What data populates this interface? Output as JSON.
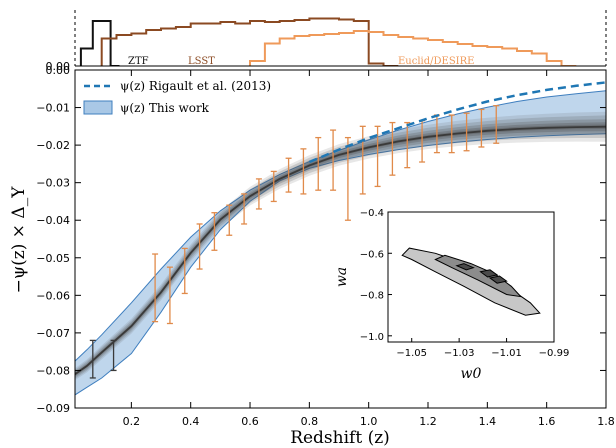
{
  "chart_data": [
    {
      "type": "line",
      "panel": "main",
      "xlabel": "Redshift (z)",
      "ylabel": "−ψ(z) × Δ_Y",
      "xlim": [
        0.01,
        1.8
      ],
      "ylim": [
        -0.09,
        0.0
      ],
      "x_ticks": [
        0.2,
        0.4,
        0.6,
        0.8,
        1.0,
        1.2,
        1.4,
        1.6,
        1.8
      ],
      "x_tick_labels": [
        "0.2",
        "0.4",
        "0.6",
        "0.8",
        "1.0",
        "1.2",
        "1.4",
        "1.6",
        "1.8"
      ],
      "y_ticks": [
        0.0,
        -0.01,
        -0.02,
        -0.03,
        -0.04,
        -0.05,
        -0.06,
        -0.07,
        -0.08,
        -0.09
      ],
      "y_tick_labels": [
        "0.00",
        "−0.01",
        "−0.02",
        "−0.03",
        "−0.04",
        "−0.05",
        "−0.06",
        "−0.07",
        "−0.08",
        "−0.09"
      ],
      "legend_position": "top-left",
      "series": [
        {
          "name": "ψ(z) Rigault et al. (2013)",
          "style": "dashed",
          "color": "#1f77b4",
          "x": [
            0.8,
            0.9,
            1.0,
            1.1,
            1.2,
            1.3,
            1.4,
            1.5,
            1.6,
            1.7,
            1.8
          ],
          "y": [
            -0.0245,
            -0.0212,
            -0.0181,
            -0.0155,
            -0.0129,
            -0.0105,
            -0.0084,
            -0.0067,
            -0.0053,
            -0.0042,
            -0.0033
          ]
        },
        {
          "name": "ψ(z) This work",
          "style": "band",
          "color": "#3f7fbf",
          "fill": "#a9c8e6",
          "x": [
            0.01,
            0.05,
            0.1,
            0.2,
            0.3,
            0.4,
            0.5,
            0.6,
            0.7,
            0.8,
            0.9,
            1.0,
            1.1,
            1.2,
            1.3,
            1.4,
            1.5,
            1.6,
            1.7,
            1.8
          ],
          "y_upper": [
            -0.0775,
            -0.0745,
            -0.0705,
            -0.062,
            -0.053,
            -0.0445,
            -0.0375,
            -0.032,
            -0.0278,
            -0.0244,
            -0.0214,
            -0.0186,
            -0.016,
            -0.0137,
            -0.0117,
            -0.0099,
            -0.0084,
            -0.0072,
            -0.0063,
            -0.0055
          ],
          "y_lower": [
            -0.0865,
            -0.0845,
            -0.082,
            -0.0755,
            -0.0645,
            -0.0525,
            -0.0425,
            -0.035,
            -0.0295,
            -0.0262,
            -0.0241,
            -0.0225,
            -0.0212,
            -0.0201,
            -0.0192,
            -0.0185,
            -0.0179,
            -0.0175,
            -0.0172,
            -0.017
          ]
        },
        {
          "name": "",
          "style": "median",
          "color": "#3a3a3a",
          "x": [
            0.01,
            0.05,
            0.1,
            0.2,
            0.3,
            0.4,
            0.5,
            0.6,
            0.7,
            0.8,
            0.9,
            1.0,
            1.1,
            1.2,
            1.3,
            1.4,
            1.5,
            1.6,
            1.7,
            1.8
          ],
          "y": [
            -0.081,
            -0.0788,
            -0.0752,
            -0.0682,
            -0.0592,
            -0.0487,
            -0.0398,
            -0.0336,
            -0.029,
            -0.0254,
            -0.0226,
            -0.0206,
            -0.019,
            -0.0178,
            -0.0169,
            -0.0162,
            -0.0157,
            -0.0154,
            -0.0152,
            -0.0151
          ]
        }
      ],
      "error_bars": [
        {
          "color": "#3a3a3a",
          "x": 0.07,
          "y": -0.077,
          "err": 0.005
        },
        {
          "color": "#3a3a3a",
          "x": 0.14,
          "y": -0.076,
          "err": 0.004
        },
        {
          "color": "#e08a4a",
          "x": 0.28,
          "y": -0.058,
          "err": 0.009
        },
        {
          "color": "#e08a4a",
          "x": 0.33,
          "y": -0.06,
          "err": 0.0075
        },
        {
          "color": "#e08a4a",
          "x": 0.38,
          "y": -0.0535,
          "err": 0.006
        },
        {
          "color": "#e08a4a",
          "x": 0.43,
          "y": -0.047,
          "err": 0.006
        },
        {
          "color": "#e08a4a",
          "x": 0.48,
          "y": -0.043,
          "err": 0.005
        },
        {
          "color": "#e08a4a",
          "x": 0.53,
          "y": -0.04,
          "err": 0.004
        },
        {
          "color": "#e08a4a",
          "x": 0.58,
          "y": -0.037,
          "err": 0.004
        },
        {
          "color": "#e08a4a",
          "x": 0.63,
          "y": -0.033,
          "err": 0.004
        },
        {
          "color": "#e08a4a",
          "x": 0.68,
          "y": -0.031,
          "err": 0.004
        },
        {
          "color": "#e08a4a",
          "x": 0.73,
          "y": -0.028,
          "err": 0.0045
        },
        {
          "color": "#e08a4a",
          "x": 0.78,
          "y": -0.027,
          "err": 0.006
        },
        {
          "color": "#e08a4a",
          "x": 0.83,
          "y": -0.025,
          "err": 0.007
        },
        {
          "color": "#e08a4a",
          "x": 0.88,
          "y": -0.024,
          "err": 0.008
        },
        {
          "color": "#e08a4a",
          "x": 0.93,
          "y": -0.029,
          "err": 0.011
        },
        {
          "color": "#e08a4a",
          "x": 0.98,
          "y": -0.024,
          "err": 0.009
        },
        {
          "color": "#e08a4a",
          "x": 1.03,
          "y": -0.023,
          "err": 0.008
        },
        {
          "color": "#e08a4a",
          "x": 1.08,
          "y": -0.021,
          "err": 0.007
        },
        {
          "color": "#e08a4a",
          "x": 1.13,
          "y": -0.02,
          "err": 0.006
        },
        {
          "color": "#e08a4a",
          "x": 1.18,
          "y": -0.019,
          "err": 0.0055
        },
        {
          "color": "#e08a4a",
          "x": 1.23,
          "y": -0.017,
          "err": 0.005
        },
        {
          "color": "#e08a4a",
          "x": 1.28,
          "y": -0.017,
          "err": 0.005
        },
        {
          "color": "#e08a4a",
          "x": 1.33,
          "y": -0.0165,
          "err": 0.005
        },
        {
          "color": "#e08a4a",
          "x": 1.38,
          "y": -0.0155,
          "err": 0.005
        },
        {
          "color": "#e08a4a",
          "x": 1.43,
          "y": -0.0145,
          "err": 0.005
        }
      ]
    },
    {
      "type": "bar",
      "panel": "top histogram",
      "ytick_labels": [
        "0.00"
      ],
      "ylim": [
        0,
        1.0
      ],
      "series": [
        {
          "name": "ZTF",
          "color": "#111111",
          "bins": [
            0.03,
            0.07,
            0.1,
            0.13,
            0.16
          ],
          "heights": [
            0.35,
            0.9,
            0.9,
            0.0
          ]
        },
        {
          "name": "LSST",
          "color": "#8b4a22",
          "bins": [
            0.1,
            0.15,
            0.2,
            0.25,
            0.3,
            0.35,
            0.4,
            0.45,
            0.5,
            0.55,
            0.6,
            0.65,
            0.7,
            0.75,
            0.8,
            0.85,
            0.9,
            0.95,
            1.0,
            1.05,
            1.1
          ],
          "heights": [
            0.55,
            0.62,
            0.65,
            0.72,
            0.75,
            0.78,
            0.85,
            0.85,
            0.88,
            0.85,
            0.9,
            0.88,
            0.9,
            0.92,
            0.95,
            0.95,
            0.93,
            0.9,
            0.05,
            0.0
          ]
        },
        {
          "name": "Euclid/DESIRE",
          "color": "#ef9a5a",
          "bins": [
            0.6,
            0.65,
            0.7,
            0.75,
            0.8,
            0.85,
            0.9,
            0.95,
            1.0,
            1.05,
            1.1,
            1.15,
            1.2,
            1.25,
            1.3,
            1.35,
            1.4,
            1.45,
            1.5,
            1.55,
            1.6,
            1.65,
            1.7
          ],
          "heights": [
            0.1,
            0.45,
            0.55,
            0.6,
            0.62,
            0.64,
            0.66,
            0.7,
            0.68,
            0.62,
            0.58,
            0.55,
            0.52,
            0.48,
            0.44,
            0.4,
            0.38,
            0.35,
            0.3,
            0.25,
            0.1,
            0.0
          ]
        }
      ]
    },
    {
      "type": "scatter",
      "panel": "inset contour",
      "xlabel": "w0",
      "ylabel": "wa",
      "xlim": [
        -1.06,
        -0.99
      ],
      "ylim": [
        -1.03,
        -0.4
      ],
      "x_ticks": [
        -1.05,
        -1.03,
        -1.01,
        -0.99
      ],
      "x_tick_labels": [
        "−1.05",
        "−1.03",
        "−1.01",
        "−0.99"
      ],
      "y_ticks": [
        -0.4,
        -0.6,
        -0.8,
        -1.0
      ],
      "y_tick_labels": [
        "−0.4",
        "−0.6",
        "−0.8",
        "−1.0"
      ],
      "contours": [
        {
          "level": "outer",
          "fill": "#c7c7c7",
          "w0": [
            -1.054,
            -1.051,
            -1.04,
            -1.03,
            -1.02,
            -1.01,
            -1.0,
            -0.996,
            -1.002,
            -1.015,
            -1.028,
            -1.04,
            -1.05
          ],
          "wa": [
            -0.61,
            -0.575,
            -0.6,
            -0.64,
            -0.69,
            -0.76,
            -0.84,
            -0.89,
            -0.9,
            -0.84,
            -0.76,
            -0.69,
            -0.63
          ]
        },
        {
          "level": "middle",
          "fill": "#8c8c8c",
          "w0": [
            -1.04,
            -1.036,
            -1.025,
            -1.015,
            -1.008,
            -1.004,
            -1.01,
            -1.022,
            -1.033
          ],
          "wa": [
            -0.63,
            -0.61,
            -0.65,
            -0.7,
            -0.76,
            -0.81,
            -0.8,
            -0.73,
            -0.67
          ]
        },
        {
          "level": "inner",
          "fill": "#4a4a4a",
          "w0": [
            -1.031,
            -1.028,
            -1.024,
            -1.027
          ],
          "wa": [
            -0.66,
            -0.65,
            -0.67,
            -0.68
          ]
        },
        {
          "level": "inner",
          "fill": "#4a4a4a",
          "w0": [
            -1.021,
            -1.017,
            -1.014,
            -1.018
          ],
          "wa": [
            -0.69,
            -0.68,
            -0.705,
            -0.715
          ]
        },
        {
          "level": "inner",
          "fill": "#4a4a4a",
          "w0": [
            -1.017,
            -1.013,
            -1.01,
            -1.014
          ],
          "wa": [
            -0.72,
            -0.71,
            -0.735,
            -0.745
          ]
        }
      ]
    }
  ]
}
